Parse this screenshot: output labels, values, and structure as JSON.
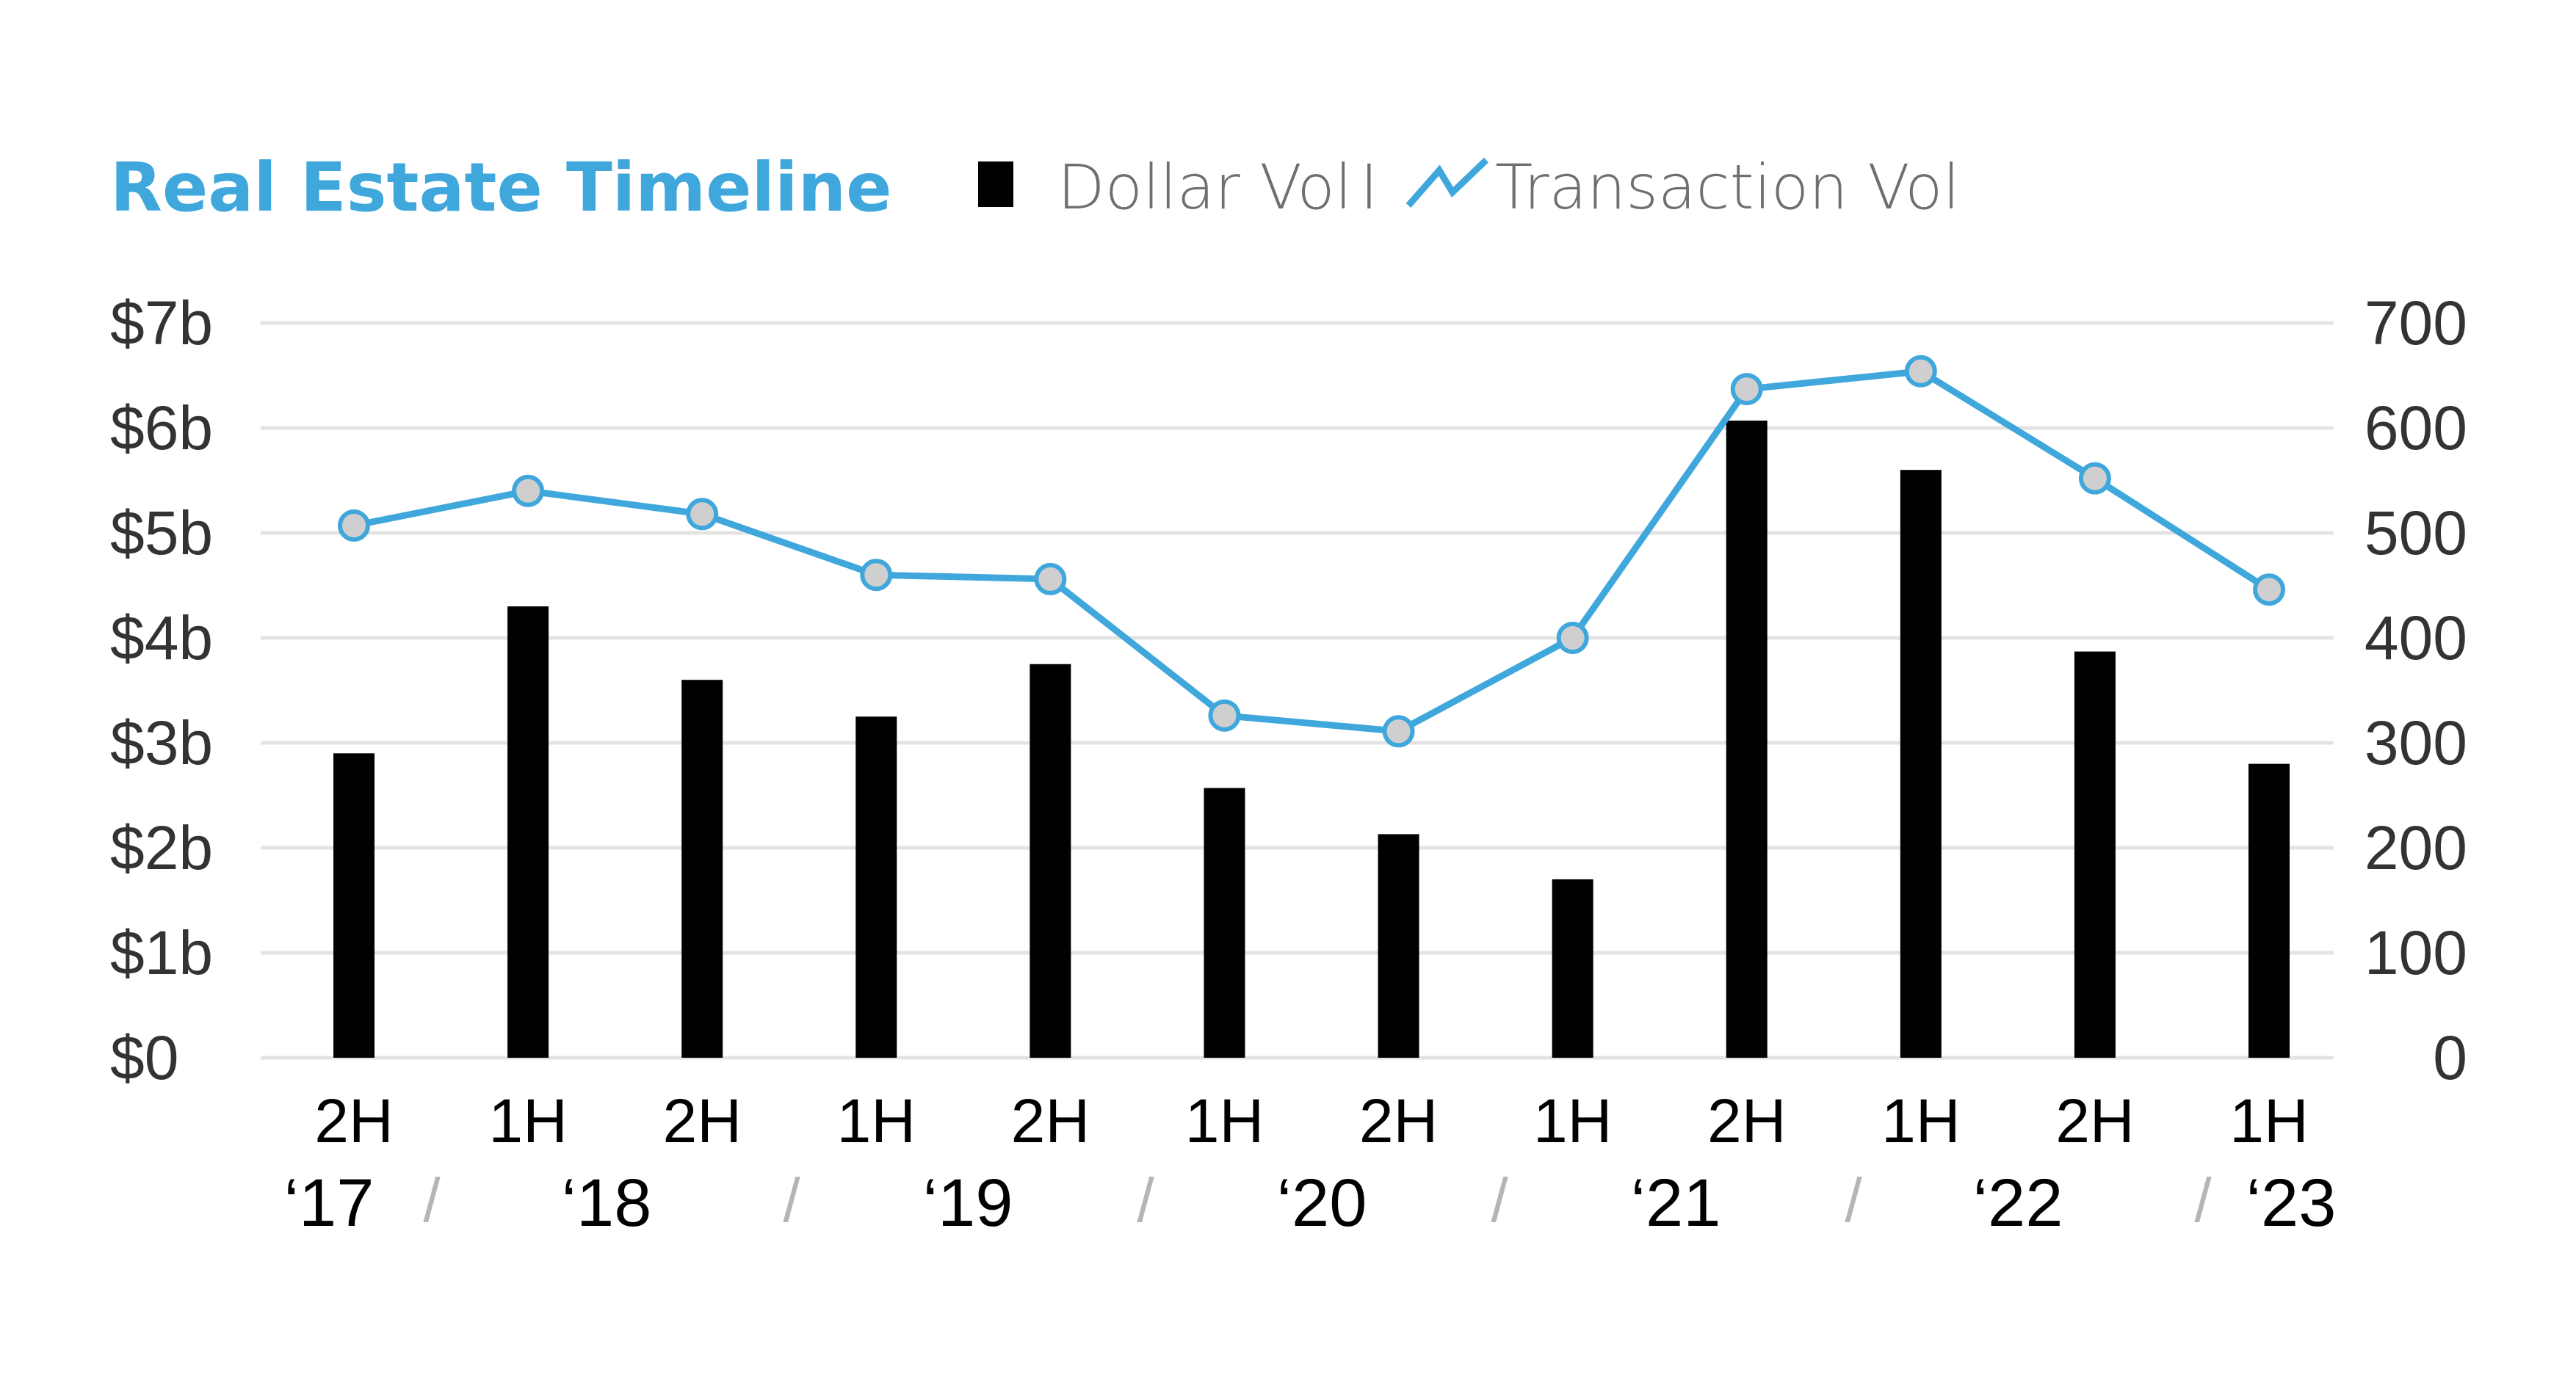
{
  "colors": {
    "accent": "#3fa7dc",
    "bar": "#000000",
    "marker_fill": "#cfcfcf",
    "grid": "#e3e3e3",
    "axis_text": "#333333",
    "legend_text": "#6f6f6f",
    "separator": "#b5b5b5"
  },
  "chart_data": {
    "type": "bar",
    "title": "Real Estate Timeline",
    "legend": {
      "placement": "top",
      "items": [
        {
          "label": "Dollar Vol",
          "icon": "bar-square-icon"
        },
        {
          "label": "Transaction Vol",
          "icon": "line-zigzag-icon"
        }
      ],
      "divider": "I"
    },
    "categories": [
      "2H",
      "1H",
      "2H",
      "1H",
      "2H",
      "1H",
      "2H",
      "1H",
      "2H",
      "1H",
      "2H",
      "1H"
    ],
    "years": [
      "‘17",
      "‘18",
      "‘19",
      "‘20",
      "‘21",
      "‘22",
      "‘23"
    ],
    "year_separator": "/",
    "series": [
      {
        "name": "Dollar Vol",
        "type": "bar",
        "axis": "left",
        "values": [
          2.9,
          4.3,
          3.6,
          3.25,
          3.75,
          2.57,
          2.13,
          1.7,
          6.07,
          5.6,
          3.87,
          2.8
        ]
      },
      {
        "name": "Transaction Vol",
        "type": "line",
        "axis": "right",
        "values": [
          507,
          540,
          518,
          460,
          456,
          326,
          311,
          400,
          637,
          654,
          552,
          446
        ]
      }
    ],
    "y_left": {
      "ylim": [
        0,
        7
      ],
      "ticks": [
        "$0",
        "$1b",
        "$2b",
        "$3b",
        "$4b",
        "$5b",
        "$6b",
        "$7b"
      ]
    },
    "y_right": {
      "ylim": [
        0,
        700
      ],
      "ticks": [
        "0",
        "100",
        "200",
        "300",
        "400",
        "500",
        "600",
        "700"
      ]
    },
    "grid": true
  }
}
